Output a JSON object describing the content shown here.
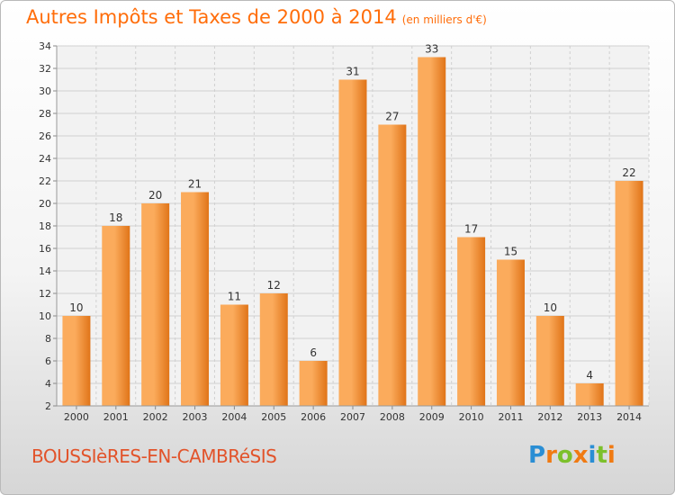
{
  "title": "Autres Impôts et Taxes de 2000 à 2014",
  "unit_note": "(en milliers d'€)",
  "commune": "BOUSSIèRES-EN-CAMBRéSIS",
  "logo": {
    "text": "Proxiti",
    "letters": [
      "P",
      "r",
      "o",
      "x",
      "i",
      "t",
      "i"
    ],
    "colors": [
      "#2a8ed4",
      "#f07a12",
      "#7cc02b",
      "#f07a12",
      "#2a8ed4",
      "#7cc02b",
      "#f07a12"
    ]
  },
  "colors": {
    "title": "#ff6d0a",
    "bar_light": "#fbab5c",
    "bar_dark": "#e07418",
    "grid": "#d0d0d0",
    "axis_text": "#333333"
  },
  "chart_data": {
    "type": "bar",
    "categories": [
      "2000",
      "2001",
      "2002",
      "2003",
      "2004",
      "2005",
      "2006",
      "2007",
      "2008",
      "2009",
      "2010",
      "2011",
      "2012",
      "2013",
      "2014"
    ],
    "values": [
      10,
      18,
      20,
      21,
      11,
      12,
      6,
      31,
      27,
      33,
      17,
      15,
      10,
      4,
      22
    ],
    "ylim": [
      2,
      34
    ],
    "yticks": [
      2,
      4,
      6,
      8,
      10,
      12,
      14,
      16,
      18,
      20,
      22,
      24,
      26,
      28,
      30,
      32,
      34
    ],
    "grid": true,
    "data_labels": true
  }
}
